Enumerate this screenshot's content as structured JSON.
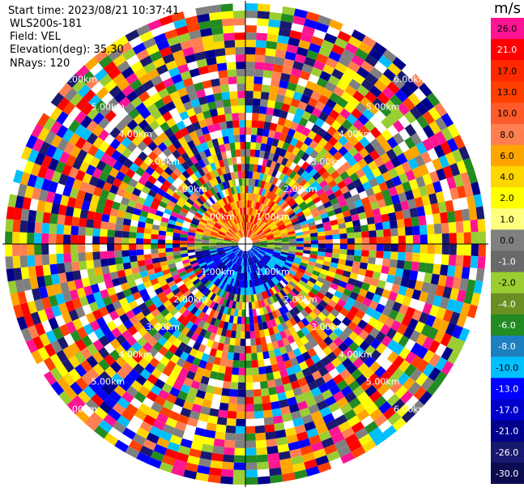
{
  "info": {
    "start_time": "Start time: 2023/08/21 10:37:41",
    "station": "WLS200s-181",
    "field": "Field: VEL",
    "elevation": "Elevation(deg): 35.30",
    "nrays": "NRays: 120"
  },
  "colorbar": {
    "unit": "m/s",
    "bins": [
      {
        "label": "26.0",
        "color": "#ff1493"
      },
      {
        "label": "21.0",
        "color": "#ff0000"
      },
      {
        "label": "17.0",
        "color": "#ff2a00"
      },
      {
        "label": "13.0",
        "color": "#ff4000"
      },
      {
        "label": "10.0",
        "color": "#ff5a2a"
      },
      {
        "label": "8.0",
        "color": "#ff7f50"
      },
      {
        "label": "6.0",
        "color": "#ffa500"
      },
      {
        "label": "4.0",
        "color": "#ffd700"
      },
      {
        "label": "2.0",
        "color": "#ffff00"
      },
      {
        "label": "1.0",
        "color": "#ffff80"
      },
      {
        "label": "0.0",
        "color": "#808080"
      },
      {
        "label": "-1.0",
        "color": "#696969"
      },
      {
        "label": "-2.0",
        "color": "#9acd32"
      },
      {
        "label": "-4.0",
        "color": "#6b8e23"
      },
      {
        "label": "-6.0",
        "color": "#228b22"
      },
      {
        "label": "-8.0",
        "color": "#1e7fc0"
      },
      {
        "label": "-10.0",
        "color": "#00bfff"
      },
      {
        "label": "-13.0",
        "color": "#0000ff"
      },
      {
        "label": "-17.0",
        "color": "#0000cd"
      },
      {
        "label": "-21.0",
        "color": "#00008b"
      },
      {
        "label": "-26.0",
        "color": "#191970"
      },
      {
        "label": "-30.0",
        "color": "#0b0b50"
      }
    ]
  },
  "range_labels": [
    "1.00km",
    "2.00km",
    "3.00km",
    "4.00km",
    "5.00km",
    "6.00km"
  ],
  "palette": [
    "#ff1493",
    "#ff0000",
    "#ff4000",
    "#ff7f50",
    "#ffa500",
    "#ffd700",
    "#ffff00",
    "#808080",
    "#9acd32",
    "#228b22",
    "#00bfff",
    "#0000ff",
    "#00008b",
    "#191970",
    "#ffffff"
  ]
}
